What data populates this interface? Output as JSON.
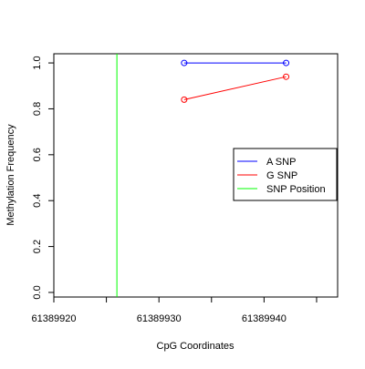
{
  "chart_data": {
    "type": "line",
    "title": "",
    "xlabel": "CpG Coordinates",
    "ylabel": "Methylation Frequency",
    "xlim": [
      61389920,
      61389947
    ],
    "ylim": [
      -0.02,
      1.04
    ],
    "x_ticks": [
      61389920,
      61389930,
      61389940
    ],
    "x_tick_labels": [
      "61389920",
      "61389930",
      "61389940"
    ],
    "y_ticks": [
      0.0,
      0.2,
      0.4,
      0.6,
      0.8,
      1.0
    ],
    "y_tick_labels": [
      "0.0",
      "0.2",
      "0.4",
      "0.6",
      "0.8",
      "1.0"
    ],
    "grid": false,
    "legend_position": "right",
    "series": [
      {
        "name": "A SNP",
        "color": "#0000ff",
        "x": [
          61389932.4,
          61389942.1
        ],
        "y": [
          1.0,
          1.0
        ]
      },
      {
        "name": "G SNP",
        "color": "#ff0000",
        "x": [
          61389932.4,
          61389942.1
        ],
        "y": [
          0.84,
          0.94
        ]
      }
    ],
    "snp_position": {
      "name": "SNP Position",
      "color": "#00ff00",
      "x": 61389926
    }
  }
}
